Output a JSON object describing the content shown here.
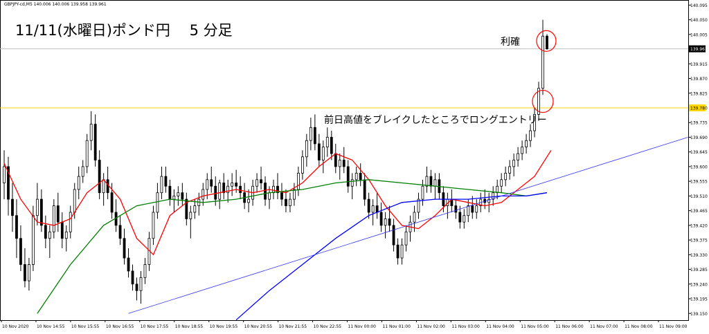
{
  "symbol_label": "GBPJPY-cd,M5  140.006 140.006 139.958 139.961",
  "title": "11/11(水曜日)ポンド円　 5 分足",
  "annotations": {
    "take_profit": "利確",
    "entry": "前日高値をブレイクしたところでロングエントリー"
  },
  "colors": {
    "up_candle": "#ffffff",
    "down_candle": "#000000",
    "short_ma": "#ff0000",
    "mid_ma": "#008000",
    "long_ma": "#0000ff",
    "trend_line": "#3333ff",
    "prev_high_line": "#ffd700",
    "current_price_line": "#c0c0c0",
    "circles": "#ff0000"
  },
  "chart_data": {
    "type": "candlestick",
    "symbol": "GBPJPY-cd",
    "timeframe": "M5",
    "ylim": [
      139.14,
      140.1
    ],
    "y_ticks": [
      "140.095",
      "140.050",
      "140.005",
      "139.961",
      "139.915",
      "139.870",
      "139.825",
      "139.780",
      "139.735",
      "139.690",
      "139.645",
      "139.600",
      "139.555",
      "139.510",
      "139.465",
      "139.420",
      "139.375",
      "139.330",
      "139.285",
      "139.240",
      "139.195",
      "139.150"
    ],
    "current_price": 139.961,
    "previous_day_high": 139.78,
    "x_ticks": [
      "10 Nov 2020",
      "10 Nov 14:55",
      "10 Nov 15:55",
      "10 Nov 16:55",
      "10 Nov 17:55",
      "10 Nov 18:55",
      "10 Nov 19:55",
      "10 Nov 20:55",
      "10 Nov 21:55",
      "10 Nov 22:55",
      "11 Nov 00:00",
      "11 Nov 01:00",
      "11 Nov 02:00",
      "11 Nov 03:00",
      "11 Nov 04:00",
      "11 Nov 05:00",
      "11 Nov 06:00",
      "11 Nov 07:00",
      "11 Nov 08:00",
      "11 Nov 09:00"
    ],
    "candles": [
      [
        139.55,
        139.65,
        139.5,
        139.6
      ],
      [
        139.6,
        139.63,
        139.45,
        139.5
      ],
      [
        139.5,
        139.55,
        139.4,
        139.45
      ],
      [
        139.45,
        139.5,
        139.32,
        139.38
      ],
      [
        139.38,
        139.42,
        139.28,
        139.3
      ],
      [
        139.3,
        139.35,
        139.23,
        139.25
      ],
      [
        139.25,
        139.32,
        139.22,
        139.3
      ],
      [
        139.3,
        139.48,
        139.28,
        139.45
      ],
      [
        139.45,
        139.55,
        139.42,
        139.5
      ],
      [
        139.5,
        139.53,
        139.4,
        139.42
      ],
      [
        139.42,
        139.45,
        139.35,
        139.38
      ],
      [
        139.38,
        139.42,
        139.32,
        139.4
      ],
      [
        139.4,
        139.5,
        139.38,
        139.48
      ],
      [
        139.48,
        139.52,
        139.4,
        139.43
      ],
      [
        139.43,
        139.46,
        139.35,
        139.38
      ],
      [
        139.38,
        139.42,
        139.34,
        139.4
      ],
      [
        139.4,
        139.48,
        139.38,
        139.46
      ],
      [
        139.46,
        139.55,
        139.44,
        139.53
      ],
      [
        139.53,
        139.6,
        139.5,
        139.57
      ],
      [
        139.57,
        139.62,
        139.55,
        139.6
      ],
      [
        139.6,
        139.7,
        139.58,
        139.68
      ],
      [
        139.68,
        139.77,
        139.65,
        139.73
      ],
      [
        139.73,
        139.76,
        139.6,
        139.62
      ],
      [
        139.62,
        139.65,
        139.5,
        139.52
      ],
      [
        139.52,
        139.58,
        139.48,
        139.56
      ],
      [
        139.56,
        139.6,
        139.5,
        139.52
      ],
      [
        139.52,
        139.55,
        139.44,
        139.46
      ],
      [
        139.46,
        139.5,
        139.4,
        139.42
      ],
      [
        139.42,
        139.45,
        139.36,
        139.38
      ],
      [
        139.38,
        139.41,
        139.3,
        139.32
      ],
      [
        139.32,
        139.35,
        139.26,
        139.28
      ],
      [
        139.28,
        139.3,
        139.22,
        139.24
      ],
      [
        139.24,
        139.26,
        139.19,
        139.22
      ],
      [
        139.22,
        139.28,
        139.18,
        139.26
      ],
      [
        139.26,
        139.32,
        139.24,
        139.3
      ],
      [
        139.3,
        139.4,
        139.28,
        139.38
      ],
      [
        139.38,
        139.48,
        139.36,
        139.46
      ],
      [
        139.46,
        139.55,
        139.44,
        139.52
      ],
      [
        139.52,
        139.6,
        139.5,
        139.57
      ],
      [
        139.57,
        139.6,
        139.52,
        139.54
      ],
      [
        139.54,
        139.56,
        139.48,
        139.5
      ],
      [
        139.5,
        139.53,
        139.46,
        139.51
      ],
      [
        139.51,
        139.54,
        139.48,
        139.52
      ],
      [
        139.52,
        139.55,
        139.48,
        139.5
      ],
      [
        139.5,
        139.52,
        139.42,
        139.44
      ],
      [
        139.44,
        139.48,
        139.38,
        139.46
      ],
      [
        139.46,
        139.5,
        139.44,
        139.48
      ],
      [
        139.48,
        139.52,
        139.45,
        139.5
      ],
      [
        139.5,
        139.55,
        139.48,
        139.53
      ],
      [
        139.53,
        139.58,
        139.5,
        139.56
      ],
      [
        139.56,
        139.6,
        139.52,
        139.54
      ],
      [
        139.54,
        139.57,
        139.48,
        139.5
      ],
      [
        139.5,
        139.56,
        139.47,
        139.55
      ],
      [
        139.55,
        139.58,
        139.5,
        139.52
      ],
      [
        139.52,
        139.56,
        139.49,
        139.54
      ],
      [
        139.54,
        139.58,
        139.51,
        139.55
      ],
      [
        139.55,
        139.59,
        139.52,
        139.54
      ],
      [
        139.54,
        139.57,
        139.5,
        139.52
      ],
      [
        139.52,
        139.55,
        139.47,
        139.49
      ],
      [
        139.49,
        139.53,
        139.46,
        139.5
      ],
      [
        139.5,
        139.56,
        139.48,
        139.54
      ],
      [
        139.54,
        139.58,
        139.52,
        139.56
      ],
      [
        139.56,
        139.6,
        139.53,
        139.55
      ],
      [
        139.55,
        139.57,
        139.48,
        139.5
      ],
      [
        139.5,
        139.54,
        139.47,
        139.52
      ],
      [
        139.52,
        139.56,
        139.5,
        139.54
      ],
      [
        139.54,
        139.58,
        139.5,
        139.52
      ],
      [
        139.52,
        139.55,
        139.48,
        139.5
      ],
      [
        139.5,
        139.53,
        139.46,
        139.48
      ],
      [
        139.48,
        139.52,
        139.46,
        139.5
      ],
      [
        139.5,
        139.55,
        139.48,
        139.53
      ],
      [
        139.53,
        139.6,
        139.51,
        139.58
      ],
      [
        139.58,
        139.65,
        139.56,
        139.63
      ],
      [
        139.63,
        139.7,
        139.6,
        139.68
      ],
      [
        139.68,
        139.75,
        139.65,
        139.72
      ],
      [
        139.72,
        139.76,
        139.65,
        139.67
      ],
      [
        139.67,
        139.7,
        139.6,
        139.62
      ],
      [
        139.62,
        139.68,
        139.58,
        139.66
      ],
      [
        139.66,
        139.72,
        139.63,
        139.69
      ],
      [
        139.69,
        139.71,
        139.62,
        139.64
      ],
      [
        139.64,
        139.67,
        139.58,
        139.6
      ],
      [
        139.6,
        139.64,
        139.56,
        139.62
      ],
      [
        139.62,
        139.66,
        139.58,
        139.6
      ],
      [
        139.6,
        139.62,
        139.52,
        139.54
      ],
      [
        139.54,
        139.58,
        139.5,
        139.56
      ],
      [
        139.56,
        139.6,
        139.54,
        139.58
      ],
      [
        139.58,
        139.61,
        139.54,
        139.56
      ],
      [
        139.56,
        139.58,
        139.48,
        139.5
      ],
      [
        139.5,
        139.52,
        139.44,
        139.46
      ],
      [
        139.46,
        139.5,
        139.42,
        139.48
      ],
      [
        139.48,
        139.52,
        139.44,
        139.46
      ],
      [
        139.46,
        139.49,
        139.4,
        139.42
      ],
      [
        139.42,
        139.46,
        139.38,
        139.44
      ],
      [
        139.44,
        139.48,
        139.4,
        139.42
      ],
      [
        139.42,
        139.44,
        139.34,
        139.36
      ],
      [
        139.36,
        139.38,
        139.3,
        139.32
      ],
      [
        139.32,
        139.38,
        139.3,
        139.36
      ],
      [
        139.36,
        139.42,
        139.34,
        139.4
      ],
      [
        139.4,
        139.45,
        139.37,
        139.43
      ],
      [
        139.43,
        139.48,
        139.4,
        139.46
      ],
      [
        139.46,
        139.52,
        139.44,
        139.5
      ],
      [
        139.5,
        139.56,
        139.48,
        139.54
      ],
      [
        139.54,
        139.6,
        139.52,
        139.57
      ],
      [
        139.57,
        139.59,
        139.52,
        139.54
      ],
      [
        139.54,
        139.58,
        139.5,
        139.56
      ],
      [
        139.56,
        139.58,
        139.5,
        139.52
      ],
      [
        139.52,
        139.54,
        139.46,
        139.48
      ],
      [
        139.48,
        139.52,
        139.44,
        139.5
      ],
      [
        139.5,
        139.53,
        139.46,
        139.48
      ],
      [
        139.48,
        139.5,
        139.44,
        139.46
      ],
      [
        139.46,
        139.48,
        139.41,
        139.43
      ],
      [
        139.43,
        139.47,
        139.41,
        139.45
      ],
      [
        139.45,
        139.5,
        139.43,
        139.48
      ],
      [
        139.48,
        139.51,
        139.44,
        139.46
      ],
      [
        139.46,
        139.5,
        139.44,
        139.48
      ],
      [
        139.48,
        139.52,
        139.46,
        139.5
      ],
      [
        139.5,
        139.53,
        139.47,
        139.49
      ],
      [
        139.49,
        139.52,
        139.46,
        139.5
      ],
      [
        139.5,
        139.54,
        139.48,
        139.52
      ],
      [
        139.52,
        139.56,
        139.5,
        139.54
      ],
      [
        139.54,
        139.58,
        139.52,
        139.56
      ],
      [
        139.56,
        139.6,
        139.54,
        139.58
      ],
      [
        139.58,
        139.62,
        139.56,
        139.6
      ],
      [
        139.6,
        139.64,
        139.57,
        139.62
      ],
      [
        139.62,
        139.66,
        139.6,
        139.64
      ],
      [
        139.64,
        139.68,
        139.62,
        139.66
      ],
      [
        139.66,
        139.7,
        139.64,
        139.68
      ],
      [
        139.68,
        139.73,
        139.66,
        139.71
      ],
      [
        139.71,
        139.78,
        139.69,
        139.76
      ],
      [
        139.76,
        139.86,
        139.74,
        139.84
      ],
      [
        139.84,
        140.05,
        139.82,
        140.0
      ],
      [
        140.0,
        140.006,
        139.958,
        139.961
      ]
    ],
    "series": [
      {
        "name": "",
        "color": "#ff0000",
        "values": [
          [
            0,
            139.61
          ],
          [
            4,
            139.5
          ],
          [
            8,
            139.43
          ],
          [
            12,
            139.42
          ],
          [
            16,
            139.44
          ],
          [
            20,
            139.52
          ],
          [
            24,
            139.56
          ],
          [
            28,
            139.5
          ],
          [
            32,
            139.38
          ],
          [
            36,
            139.33
          ],
          [
            40,
            139.45
          ],
          [
            44,
            139.49
          ],
          [
            48,
            139.51
          ],
          [
            52,
            139.52
          ],
          [
            56,
            139.53
          ],
          [
            60,
            139.52
          ],
          [
            64,
            139.53
          ],
          [
            68,
            139.52
          ],
          [
            72,
            139.55
          ],
          [
            76,
            139.6
          ],
          [
            80,
            139.64
          ],
          [
            84,
            139.62
          ],
          [
            88,
            139.56
          ],
          [
            92,
            139.48
          ],
          [
            96,
            139.42
          ],
          [
            100,
            139.41
          ],
          [
            104,
            139.45
          ],
          [
            108,
            139.5
          ],
          [
            112,
            139.49
          ],
          [
            116,
            139.48
          ],
          [
            120,
            139.49
          ],
          [
            124,
            139.53
          ],
          [
            128,
            139.57
          ],
          [
            132,
            139.65
          ]
        ]
      },
      {
        "name": "",
        "color": "#008000",
        "values": [
          [
            8,
            139.15
          ],
          [
            16,
            139.3
          ],
          [
            24,
            139.42
          ],
          [
            32,
            139.48
          ],
          [
            40,
            139.5
          ],
          [
            48,
            139.49
          ],
          [
            56,
            139.5
          ],
          [
            64,
            139.52
          ],
          [
            72,
            139.53
          ],
          [
            80,
            139.55
          ],
          [
            88,
            139.56
          ],
          [
            96,
            139.55
          ],
          [
            104,
            139.54
          ],
          [
            112,
            139.53
          ],
          [
            120,
            139.52
          ],
          [
            126,
            139.51
          ],
          [
            131,
            139.52
          ]
        ]
      },
      {
        "name": "",
        "color": "#0000ff",
        "values": [
          [
            56,
            139.13
          ],
          [
            64,
            139.22
          ],
          [
            72,
            139.3
          ],
          [
            80,
            139.38
          ],
          [
            88,
            139.45
          ],
          [
            96,
            139.49
          ],
          [
            104,
            139.5
          ],
          [
            112,
            139.5
          ],
          [
            120,
            139.51
          ],
          [
            126,
            139.51
          ],
          [
            131,
            139.52
          ]
        ]
      }
    ],
    "trend_line": {
      "x0": 30,
      "y0": 139.15,
      "x1": 165,
      "y1": 139.69
    }
  }
}
